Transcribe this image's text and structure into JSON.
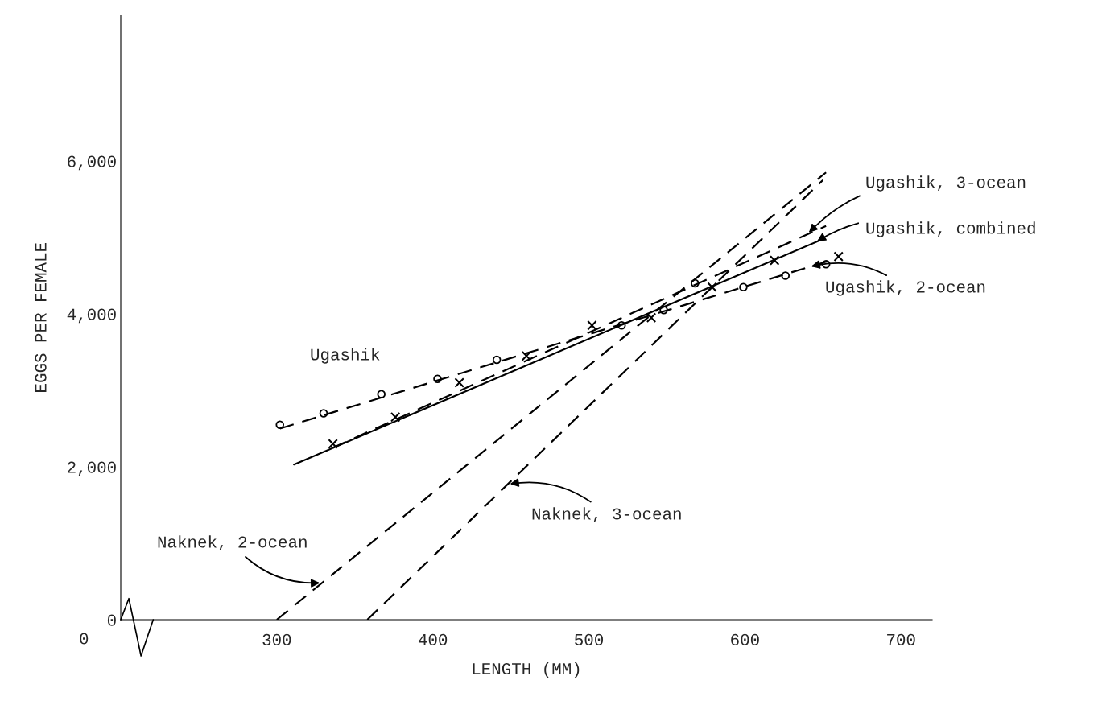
{
  "chart_data": {
    "type": "line",
    "xlabel": "LENGTH (MM)",
    "ylabel": "EGGS PER FEMALE",
    "xlim": [
      200,
      720
    ],
    "ylim": [
      0,
      7900
    ],
    "xticks": [
      300,
      400,
      500,
      600,
      700
    ],
    "yticks": [
      {
        "value": 0,
        "label": "0"
      },
      {
        "value": 2000,
        "label": "2,000"
      },
      {
        "value": 4000,
        "label": "4,000"
      },
      {
        "value": 6000,
        "label": "6,000"
      }
    ],
    "grid": false,
    "legend": false,
    "series": [
      {
        "type": "scatter",
        "marker": "circle",
        "color": "#000000",
        "x": [
          302,
          330,
          367,
          403,
          441,
          521,
          548,
          568,
          599,
          626,
          652
        ],
        "values": [
          2550,
          2700,
          2950,
          3150,
          3400,
          3850,
          4050,
          4400,
          4350,
          4500,
          4650
        ]
      },
      {
        "line_style": "dashed",
        "color": "#000000",
        "x": [
          302,
          655
        ],
        "values": [
          2500,
          4700
        ]
      },
      {
        "type": "scatter",
        "marker": "cross",
        "color": "#000000",
        "x": [
          336,
          376,
          417,
          460,
          502,
          540,
          579,
          619,
          660
        ],
        "values": [
          2300,
          2650,
          3100,
          3450,
          3850,
          3950,
          4350,
          4700,
          4750
        ]
      },
      {
        "line_style": "dashed",
        "color": "#000000",
        "x": [
          336,
          652
        ],
        "values": [
          2250,
          5150
        ]
      },
      {
        "line_style": "solid",
        "color": "#000000",
        "x": [
          311,
          649
        ],
        "values": [
          2030,
          4970
        ]
      },
      {
        "line_style": "dashed",
        "color": "#000000",
        "x": [
          300,
          652
        ],
        "values": [
          0,
          5850
        ]
      },
      {
        "line_style": "dashed",
        "color": "#000000",
        "x": [
          358,
          650
        ],
        "values": [
          0,
          5750
        ]
      }
    ],
    "annotations": [
      {
        "text": "Ugashik, 3-ocean",
        "x": 640,
        "y": 5040
      },
      {
        "text": "Ugashik, combined",
        "x": 645,
        "y": 4935
      },
      {
        "text": "Ugashik, 2-ocean",
        "x": 641,
        "y": 4613
      },
      "Ugashik",
      {
        "text": "Naknek, 2-ocean",
        "x": 329,
        "y": 482
      },
      {
        "text": "Naknek, 3-ocean",
        "x": 448,
        "y": 1772
      },
      "0"
    ]
  }
}
